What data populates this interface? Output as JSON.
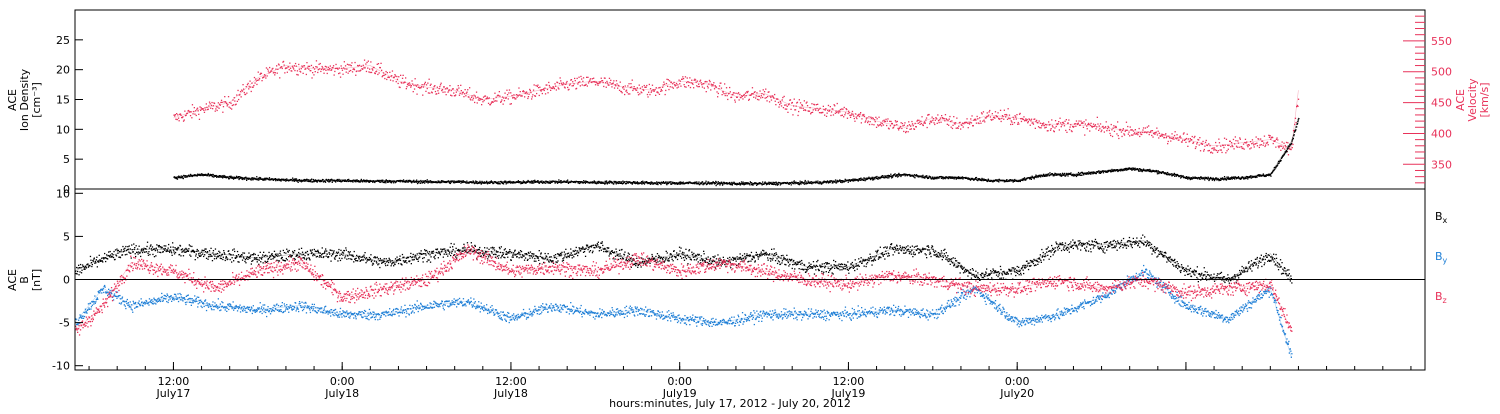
{
  "colors": {
    "axis": "#000000",
    "density": "#000000",
    "velocity": "#e8325a",
    "bx": "#000000",
    "by": "#1f7fd6",
    "bz": "#e8325a"
  },
  "chart_data": [
    {
      "type": "scatter",
      "panel": "top",
      "left_axis": {
        "label_lines": [
          "ACE",
          "Ion Density",
          "[cm⁻³]"
        ],
        "ylim": [
          0,
          30
        ],
        "ticks": [
          0,
          5,
          10,
          15,
          20,
          25
        ]
      },
      "right_axis": {
        "label_lines": [
          "ACE",
          "Velocity",
          "[km/s]"
        ],
        "ylim": [
          310,
          600
        ],
        "ticks": [
          350,
          400,
          450,
          500,
          550
        ]
      },
      "series": [
        {
          "axis": "left",
          "x_hours": [
            0,
            2,
            4,
            6,
            8,
            10,
            12,
            14,
            16,
            18,
            20,
            22,
            24,
            26,
            28,
            30,
            32,
            34,
            36,
            38,
            40,
            42,
            44,
            46,
            48,
            50,
            52,
            54,
            56,
            58,
            60,
            62,
            64,
            66,
            68,
            70,
            72,
            74,
            76,
            78,
            79.5,
            80
          ],
          "values": [
            2,
            2.5,
            2,
            1.8,
            1.6,
            1.5,
            1.5,
            1.4,
            1.4,
            1.3,
            1.3,
            1.2,
            1.2,
            1.3,
            1.3,
            1.2,
            1.2,
            1.1,
            1.1,
            1.1,
            1.0,
            1.0,
            1.1,
            1.2,
            1.5,
            2.0,
            2.5,
            2.0,
            2.0,
            1.5,
            1.5,
            2.5,
            2.5,
            3.0,
            3.5,
            3.0,
            2.0,
            1.8,
            2.0,
            2.5,
            8.0,
            12.0
          ]
        },
        {
          "axis": "right",
          "x_hours": [
            0,
            2,
            4,
            6,
            8,
            10,
            12,
            14,
            16,
            18,
            20,
            22,
            24,
            26,
            28,
            30,
            32,
            34,
            36,
            38,
            40,
            42,
            44,
            46,
            48,
            50,
            52,
            54,
            56,
            58,
            60,
            62,
            64,
            66,
            68,
            70,
            72,
            74,
            76,
            78,
            79.5,
            80
          ],
          "values": [
            425,
            440,
            450,
            490,
            510,
            505,
            505,
            510,
            485,
            475,
            470,
            455,
            460,
            470,
            480,
            485,
            475,
            470,
            485,
            480,
            460,
            465,
            445,
            440,
            435,
            420,
            410,
            425,
            415,
            430,
            425,
            415,
            415,
            410,
            405,
            400,
            390,
            380,
            385,
            390,
            375,
            470
          ]
        }
      ]
    },
    {
      "type": "scatter",
      "panel": "bottom",
      "left_axis": {
        "label_lines": [
          "ACE",
          "B",
          "[nT]"
        ],
        "ylim": [
          -10.5,
          10.5
        ],
        "ticks": [
          -10,
          -5,
          0,
          5,
          10
        ]
      },
      "x_axis": {
        "label": "hours:minutes, July 17, 2012 - July 20, 2012",
        "xlim": [
          -7,
          89
        ],
        "tick_hours": [
          0,
          12,
          24,
          36,
          48,
          60,
          72
        ],
        "tick_labels": [
          "12:00",
          "0:00",
          "12:00",
          "0:00",
          "12:00",
          "0:00"
        ],
        "tick_sublabels": [
          "July17",
          "July18",
          "July18",
          "July19",
          "July19",
          "July20"
        ],
        "tick_label_hours": [
          0,
          12,
          24,
          36,
          48,
          60
        ]
      },
      "legend": [
        "B",
        "B",
        "B"
      ],
      "legend_subs": [
        "x",
        "y",
        "z"
      ],
      "series": [
        {
          "name": "Bx",
          "x_hours": [
            -7,
            -5,
            -3,
            0,
            3,
            6,
            9,
            12,
            15,
            18,
            21,
            24,
            27,
            30,
            33,
            36,
            39,
            42,
            45,
            48,
            51,
            54,
            57,
            60,
            63,
            66,
            69,
            72,
            75,
            78,
            79.5
          ],
          "values": [
            1,
            2.5,
            3.5,
            3.5,
            3,
            2.5,
            3,
            3,
            2,
            3,
            3.5,
            3,
            2.5,
            4,
            2,
            3,
            2,
            3,
            1.5,
            1.5,
            3.5,
            3.5,
            0.5,
            1,
            4,
            4,
            4.5,
            1,
            0,
            3,
            0
          ]
        },
        {
          "name": "By",
          "x_hours": [
            -7,
            -5,
            -3,
            0,
            3,
            6,
            9,
            12,
            15,
            18,
            21,
            24,
            27,
            30,
            33,
            36,
            39,
            42,
            45,
            48,
            51,
            54,
            57,
            60,
            63,
            66,
            69,
            72,
            75,
            78,
            79.5
          ],
          "values": [
            -5,
            -1,
            -3,
            -2,
            -3,
            -3.5,
            -3,
            -4,
            -4,
            -3,
            -2.5,
            -4.5,
            -3,
            -4,
            -3.5,
            -4.5,
            -5,
            -4,
            -4,
            -4,
            -3.5,
            -4,
            -1,
            -5,
            -4,
            -2,
            1,
            -3,
            -4.5,
            -1,
            -9
          ]
        },
        {
          "name": "Bz",
          "x_hours": [
            -7,
            -5,
            -3,
            0,
            3,
            6,
            9,
            12,
            15,
            18,
            21,
            24,
            27,
            30,
            33,
            36,
            39,
            42,
            45,
            48,
            51,
            54,
            57,
            60,
            63,
            66,
            69,
            72,
            75,
            78,
            79.5
          ],
          "values": [
            -6,
            -3,
            2,
            1,
            -1,
            1,
            2,
            -2,
            -1,
            0,
            3.5,
            1,
            1.5,
            1,
            2.5,
            1,
            2,
            1,
            0,
            -0.5,
            0.5,
            0,
            -1,
            -1,
            0,
            -1,
            0,
            -1.5,
            -1,
            -0.5,
            -6
          ]
        }
      ]
    }
  ]
}
